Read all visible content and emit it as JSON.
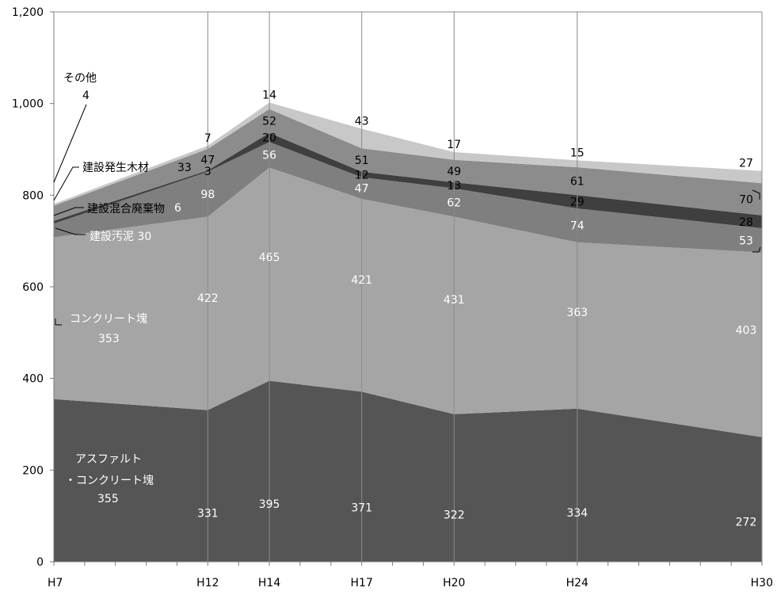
{
  "chart_data": {
    "type": "area",
    "stacked": true,
    "title": "",
    "xlabel": "",
    "ylabel": "",
    "ylim": [
      0,
      1200
    ],
    "yticks": [
      "0",
      "200",
      "400",
      "600",
      "800",
      "1,000",
      "1,200"
    ],
    "x": [
      7,
      12,
      14,
      17,
      20,
      24,
      30
    ],
    "xticks": [
      "H7",
      "H12",
      "H14",
      "H17",
      "H20",
      "H24",
      "H30"
    ],
    "grid": "vertical lines at labeled years",
    "series": [
      {
        "name": "アスファルト・コンクリート塊",
        "values": [
          355,
          331,
          395,
          371,
          322,
          334,
          272
        ],
        "color": "#555555"
      },
      {
        "name": "コンクリート塊",
        "values": [
          353,
          422,
          465,
          421,
          431,
          363,
          403
        ],
        "color": "#a5a5a5"
      },
      {
        "name": "建設汚泥",
        "values": [
          30,
          98,
          56,
          47,
          62,
          74,
          53
        ],
        "color": "#7f7f7f"
      },
      {
        "name": "建設混合廃棄物",
        "values": [
          6,
          3,
          20,
          12,
          13,
          29,
          28
        ],
        "color": "#3f3f3f"
      },
      {
        "name": "建設発生木材",
        "values": [
          33,
          47,
          52,
          51,
          49,
          61,
          70
        ],
        "color": "#8c8c8c"
      },
      {
        "name": "その他",
        "values": [
          4,
          7,
          14,
          43,
          17,
          15,
          27
        ],
        "color": "#c8c8c8"
      }
    ],
    "series_labels": {
      "asphalt": [
        "アスファルト",
        "・コンクリート塊",
        "355"
      ],
      "concrete": [
        "コンクリート塊",
        "353"
      ],
      "sludge": "建設汚泥 30",
      "mixed": [
        "建設混合廃棄物",
        "6"
      ],
      "wood": [
        "建設発生木材",
        "33"
      ],
      "other": [
        "その他",
        "4"
      ]
    }
  }
}
